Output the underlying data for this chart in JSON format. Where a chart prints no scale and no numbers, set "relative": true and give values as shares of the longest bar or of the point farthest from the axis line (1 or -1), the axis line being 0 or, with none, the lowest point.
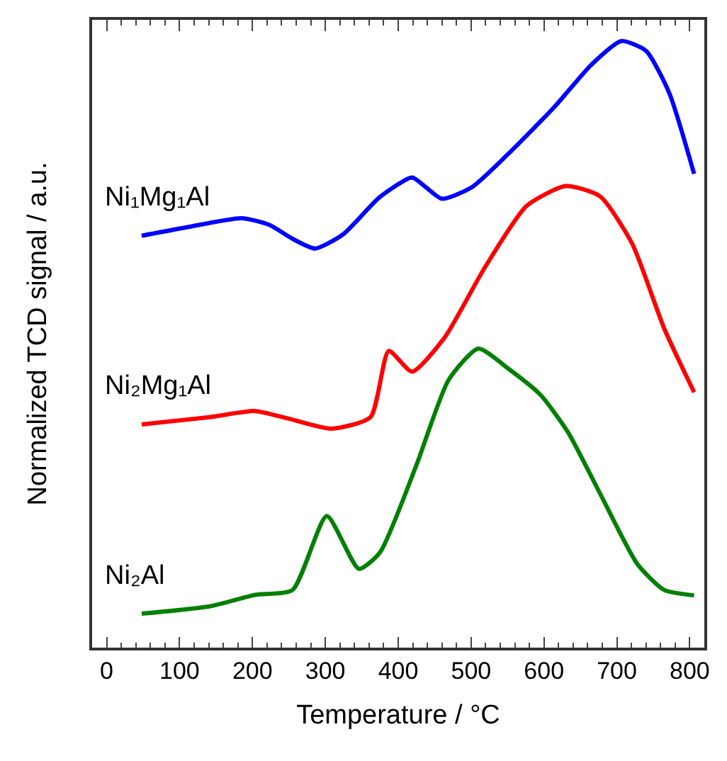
{
  "chart_data": {
    "type": "line",
    "xlabel": "Temperature / °C",
    "ylabel": "Normalized TCD signal / a.u.",
    "relative": true,
    "tick_labels": "x",
    "xlim": [
      -20,
      820
    ],
    "xticks": [
      0,
      100,
      200,
      300,
      400,
      500,
      600,
      700,
      800
    ],
    "legend": false,
    "series": [
      {
        "name": "Ni₁Mg₁Al",
        "color": "#0000ff",
        "x": [
          48,
          110,
          185,
          223,
          255,
          286,
          324,
          375,
          419,
          438,
          460,
          501,
          551,
          614,
          665,
          706,
          740,
          772,
          806
        ],
        "values": [
          0.679,
          0.693,
          0.708,
          0.697,
          0.674,
          0.658,
          0.681,
          0.743,
          0.775,
          0.759,
          0.74,
          0.759,
          0.814,
          0.891,
          0.961,
          1.0,
          0.984,
          0.914,
          0.781
        ]
      },
      {
        "name": "Ni₂Mg₁Al",
        "color": "#ff0000",
        "x": [
          48,
          141,
          204,
          248,
          308,
          362,
          387,
          419,
          463,
          519,
          576,
          630,
          677,
          721,
          765,
          806
        ],
        "values": [
          0.368,
          0.38,
          0.39,
          0.378,
          0.361,
          0.38,
          0.489,
          0.455,
          0.51,
          0.627,
          0.728,
          0.761,
          0.744,
          0.666,
          0.526,
          0.421
        ]
      },
      {
        "name": "Ni₂Al",
        "color": "#008000",
        "x": [
          48,
          141,
          204,
          255,
          302,
          346,
          375,
          425,
          469,
          510,
          551,
          595,
          633,
          677,
          728,
          765,
          806
        ],
        "values": [
          0.056,
          0.068,
          0.087,
          0.095,
          0.217,
          0.13,
          0.157,
          0.301,
          0.441,
          0.493,
          0.46,
          0.417,
          0.355,
          0.254,
          0.138,
          0.095,
          0.086
        ]
      }
    ]
  }
}
